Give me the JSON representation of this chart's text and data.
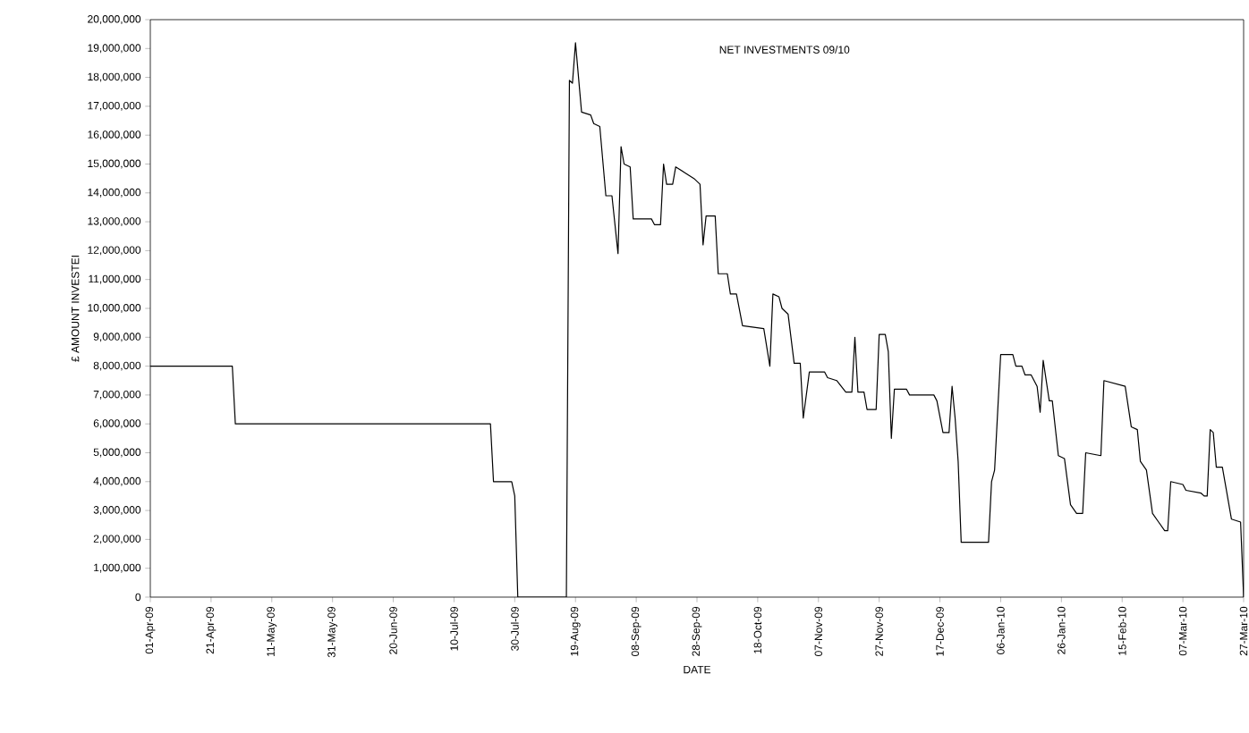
{
  "chart_data": {
    "type": "line",
    "title": "NET INVESTMENTS 09/10",
    "xlabel": "DATE",
    "ylabel": "£ AMOUNT INVESTEI",
    "x": [
      "2009-04-01",
      "2009-04-28",
      "2009-04-29",
      "2009-07-22",
      "2009-07-23",
      "2009-07-29",
      "2009-07-30",
      "2009-07-31",
      "2009-08-16",
      "2009-08-17",
      "2009-08-18",
      "2009-08-19",
      "2009-08-21",
      "2009-08-24",
      "2009-08-25",
      "2009-08-27",
      "2009-08-29",
      "2009-08-31",
      "2009-09-02",
      "2009-09-03",
      "2009-09-04",
      "2009-09-06",
      "2009-09-07",
      "2009-09-13",
      "2009-09-14",
      "2009-09-16",
      "2009-09-17",
      "2009-09-18",
      "2009-09-20",
      "2009-09-21",
      "2009-09-24",
      "2009-09-27",
      "2009-09-29",
      "2009-09-30",
      "2009-10-01",
      "2009-10-04",
      "2009-10-05",
      "2009-10-08",
      "2009-10-09",
      "2009-10-11",
      "2009-10-13",
      "2009-10-20",
      "2009-10-22",
      "2009-10-23",
      "2009-10-25",
      "2009-10-26",
      "2009-10-28",
      "2009-10-30",
      "2009-11-01",
      "2009-11-02",
      "2009-11-04",
      "2009-11-09",
      "2009-11-10",
      "2009-11-13",
      "2009-11-16",
      "2009-11-18",
      "2009-11-19",
      "2009-11-20",
      "2009-11-22",
      "2009-11-23",
      "2009-11-26",
      "2009-11-27",
      "2009-11-29",
      "2009-11-30",
      "2009-12-01",
      "2009-12-02",
      "2009-12-06",
      "2009-12-07",
      "2009-12-15",
      "2009-12-16",
      "2009-12-18",
      "2009-12-20",
      "2009-12-21",
      "2009-12-22",
      "2009-12-23",
      "2009-12-24",
      "2010-01-02",
      "2010-01-03",
      "2010-01-04",
      "2010-01-06",
      "2010-01-10",
      "2010-01-11",
      "2010-01-13",
      "2010-01-14",
      "2010-01-16",
      "2010-01-18",
      "2010-01-19",
      "2010-01-20",
      "2010-01-22",
      "2010-01-23",
      "2010-01-25",
      "2010-01-27",
      "2010-01-29",
      "2010-01-31",
      "2010-02-02",
      "2010-02-03",
      "2010-02-08",
      "2010-02-09",
      "2010-02-16",
      "2010-02-18",
      "2010-02-20",
      "2010-02-21",
      "2010-02-23",
      "2010-02-25",
      "2010-02-27",
      "2010-03-01",
      "2010-03-02",
      "2010-03-03",
      "2010-03-07",
      "2010-03-08",
      "2010-03-13",
      "2010-03-14",
      "2010-03-15",
      "2010-03-16",
      "2010-03-17",
      "2010-03-18",
      "2010-03-20",
      "2010-03-23",
      "2010-03-26",
      "2010-03-27"
    ],
    "values": [
      8000000,
      8000000,
      6000000,
      6000000,
      4000000,
      4000000,
      3500000,
      0,
      0,
      17900000,
      17800000,
      19200000,
      16800000,
      16700000,
      16400000,
      16300000,
      13900000,
      13900000,
      11900000,
      15600000,
      15000000,
      14900000,
      13100000,
      13100000,
      12900000,
      12900000,
      15000000,
      14300000,
      14300000,
      14900000,
      14700000,
      14500000,
      14300000,
      12200000,
      13200000,
      13200000,
      11200000,
      11200000,
      10500000,
      10500000,
      9400000,
      9300000,
      8000000,
      10500000,
      10400000,
      10000000,
      9800000,
      8100000,
      8100000,
      6200000,
      7800000,
      7800000,
      7600000,
      7500000,
      7100000,
      7100000,
      9000000,
      7100000,
      7100000,
      6500000,
      6500000,
      9100000,
      9100000,
      8500000,
      5500000,
      7200000,
      7200000,
      7000000,
      7000000,
      6800000,
      5700000,
      5700000,
      7300000,
      6200000,
      4700000,
      1900000,
      1900000,
      4000000,
      4400000,
      8400000,
      8400000,
      8000000,
      8000000,
      7700000,
      7700000,
      7300000,
      6400000,
      8200000,
      6800000,
      6800000,
      4900000,
      4800000,
      3200000,
      2900000,
      2900000,
      5000000,
      4900000,
      7500000,
      7300000,
      5900000,
      5800000,
      4700000,
      4400000,
      2900000,
      2600000,
      2300000,
      2300000,
      4000000,
      3900000,
      3700000,
      3600000,
      3500000,
      3500000,
      5800000,
      5700000,
      4500000,
      4500000,
      2700000,
      2600000,
      0
    ],
    "color": "#000000",
    "line_style": "solid",
    "marker": "none",
    "grid": false,
    "legend": false,
    "xlim": [
      "2009-04-01",
      "2010-03-27"
    ],
    "xticks": [
      {
        "value": "2009-04-01",
        "label": "01-Apr-09"
      },
      {
        "value": "2009-04-21",
        "label": "21-Apr-09"
      },
      {
        "value": "2009-05-11",
        "label": "11-May-09"
      },
      {
        "value": "2009-05-31",
        "label": "31-May-09"
      },
      {
        "value": "2009-06-20",
        "label": "20-Jun-09"
      },
      {
        "value": "2009-07-10",
        "label": "10-Jul-09"
      },
      {
        "value": "2009-07-30",
        "label": "30-Jul-09"
      },
      {
        "value": "2009-08-19",
        "label": "19-Aug-09"
      },
      {
        "value": "2009-09-08",
        "label": "08-Sep-09"
      },
      {
        "value": "2009-09-28",
        "label": "28-Sep-09"
      },
      {
        "value": "2009-10-18",
        "label": "18-Oct-09"
      },
      {
        "value": "2009-11-07",
        "label": "07-Nov-09"
      },
      {
        "value": "2009-11-27",
        "label": "27-Nov-09"
      },
      {
        "value": "2009-12-17",
        "label": "17-Dec-09"
      },
      {
        "value": "2010-01-06",
        "label": "06-Jan-10"
      },
      {
        "value": "2010-01-26",
        "label": "26-Jan-10"
      },
      {
        "value": "2010-02-15",
        "label": "15-Feb-10"
      },
      {
        "value": "2010-03-07",
        "label": "07-Mar-10"
      },
      {
        "value": "2010-03-27",
        "label": "27-Mar-10"
      }
    ],
    "ylim": [
      0,
      20000000
    ],
    "yticks": [
      {
        "value": 0,
        "label": "0"
      },
      {
        "value": 1000000,
        "label": "1,000,000"
      },
      {
        "value": 2000000,
        "label": "2,000,000"
      },
      {
        "value": 3000000,
        "label": "3,000,000"
      },
      {
        "value": 4000000,
        "label": "4,000,000"
      },
      {
        "value": 5000000,
        "label": "5,000,000"
      },
      {
        "value": 6000000,
        "label": "6,000,000"
      },
      {
        "value": 7000000,
        "label": "7,000,000"
      },
      {
        "value": 8000000,
        "label": "8,000,000"
      },
      {
        "value": 9000000,
        "label": "9,000,000"
      },
      {
        "value": 10000000,
        "label": "10,000,000"
      },
      {
        "value": 11000000,
        "label": "11,000,000"
      },
      {
        "value": 12000000,
        "label": "12,000,000"
      },
      {
        "value": 13000000,
        "label": "13,000,000"
      },
      {
        "value": 14000000,
        "label": "14,000,000"
      },
      {
        "value": 15000000,
        "label": "15,000,000"
      },
      {
        "value": 16000000,
        "label": "16,000,000"
      },
      {
        "value": 17000000,
        "label": "17,000,000"
      },
      {
        "value": 18000000,
        "label": "18,000,000"
      },
      {
        "value": 19000000,
        "label": "19,000,000"
      },
      {
        "value": 20000000,
        "label": "20,000,000"
      }
    ]
  }
}
